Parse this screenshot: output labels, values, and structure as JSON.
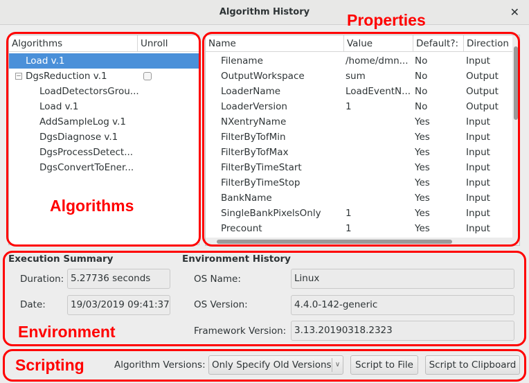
{
  "window": {
    "title": "Algorithm History",
    "close_icon": "close-icon"
  },
  "annotations": {
    "properties": "Properties",
    "algorithms": "Algorithms",
    "environment": "Environment",
    "scripting": "Scripting",
    "color": "#ff0000"
  },
  "tree": {
    "headers": [
      "Algorithms",
      "Unroll"
    ],
    "items": [
      {
        "label": "Load v.1",
        "level": 0,
        "selected": true
      },
      {
        "label": "DgsReduction v.1",
        "level": 0,
        "expanded": true,
        "unroll_checkbox": false
      },
      {
        "label": "LoadDetectorsGrou...",
        "level": 1
      },
      {
        "label": "Load v.1",
        "level": 1
      },
      {
        "label": "AddSampleLog v.1",
        "level": 1
      },
      {
        "label": "DgsDiagnose v.1",
        "level": 1
      },
      {
        "label": "DgsProcessDetect...",
        "level": 1
      },
      {
        "label": "DgsConvertToEner...",
        "level": 1
      }
    ]
  },
  "properties": {
    "headers": [
      "Name",
      "Value",
      "Default?:",
      "Direction"
    ],
    "rows": [
      [
        "Filename",
        "/home/dmn...",
        "No",
        "Input"
      ],
      [
        "OutputWorkspace",
        "sum",
        "No",
        "Output"
      ],
      [
        "LoaderName",
        "LoadEventN...",
        "No",
        "Output"
      ],
      [
        "LoaderVersion",
        "1",
        "No",
        "Output"
      ],
      [
        "NXentryName",
        "",
        "Yes",
        "Input"
      ],
      [
        "FilterByTofMin",
        "",
        "Yes",
        "Input"
      ],
      [
        "FilterByTofMax",
        "",
        "Yes",
        "Input"
      ],
      [
        "FilterByTimeStart",
        "",
        "Yes",
        "Input"
      ],
      [
        "FilterByTimeStop",
        "",
        "Yes",
        "Input"
      ],
      [
        "BankName",
        "",
        "Yes",
        "Input"
      ],
      [
        "SingleBankPixelsOnly",
        "1",
        "Yes",
        "Input"
      ],
      [
        "Precount",
        "1",
        "Yes",
        "Input"
      ]
    ]
  },
  "execution": {
    "title": "Execution Summary",
    "duration_label": "Duration:",
    "duration": "5.27736 seconds",
    "date_label": "Date:",
    "date": "19/03/2019 09:41:37"
  },
  "environment": {
    "title": "Environment History",
    "os_name_label": "OS Name:",
    "os_name": "Linux",
    "os_version_label": "OS Version:",
    "os_version": "4.4.0-142-generic",
    "framework_label": "Framework Version:",
    "framework": "3.13.20190318.2323"
  },
  "scripting": {
    "versions_label": "Algorithm Versions:",
    "versions_value": "Only Specify Old Versions",
    "script_file": "Script to File",
    "script_clipboard": "Script to Clipboard"
  }
}
